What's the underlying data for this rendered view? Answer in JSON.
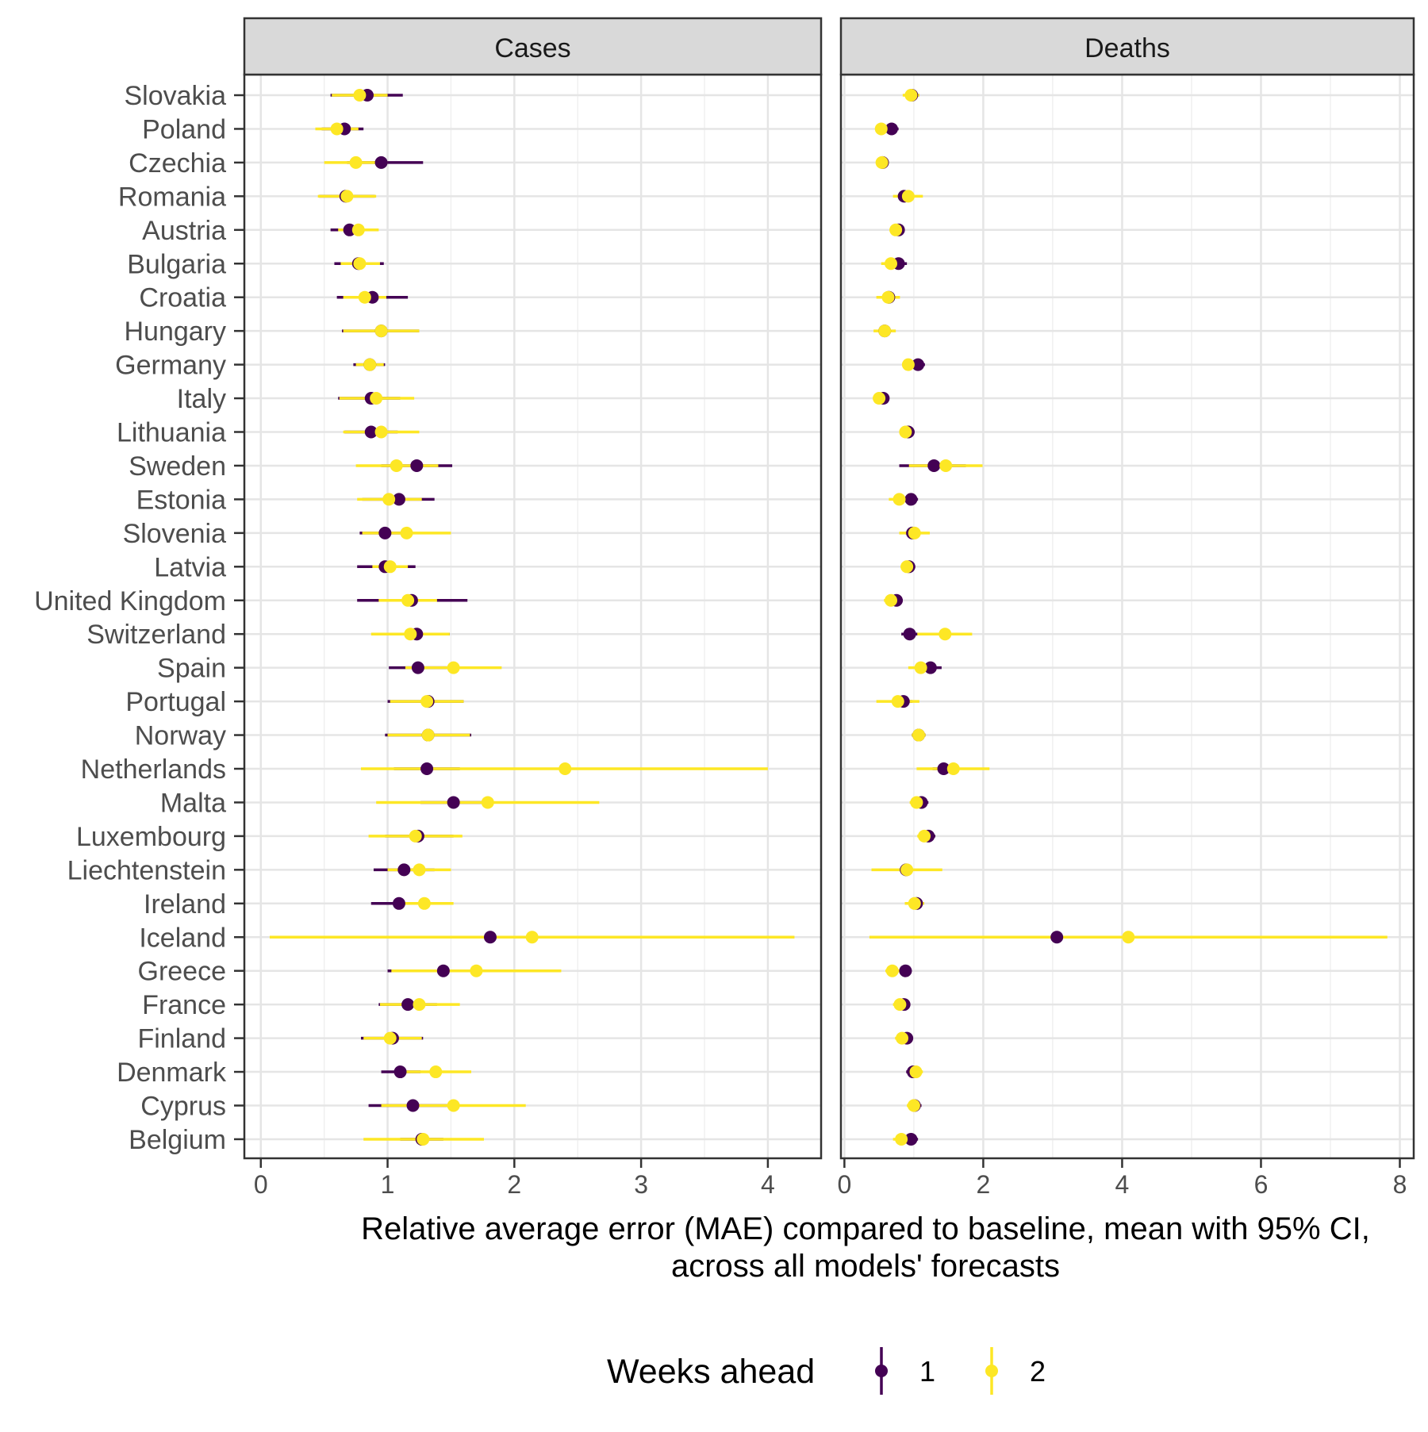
{
  "chart_data": {
    "type": "scatter",
    "description_type": "dot-and-whisker (mean with 95% CI), faceted",
    "countries": [
      "Slovakia",
      "Poland",
      "Czechia",
      "Romania",
      "Austria",
      "Bulgaria",
      "Croatia",
      "Hungary",
      "Germany",
      "Italy",
      "Lithuania",
      "Sweden",
      "Estonia",
      "Slovenia",
      "Latvia",
      "United Kingdom",
      "Switzerland",
      "Spain",
      "Portugal",
      "Norway",
      "Netherlands",
      "Malta",
      "Luxembourg",
      "Liechtenstein",
      "Ireland",
      "Iceland",
      "Greece",
      "France",
      "Finland",
      "Denmark",
      "Cyprus",
      "Belgium"
    ],
    "xlabel": "Relative average error (MAE) compared to baseline, mean with 95% CI,\nacross all models' forecasts",
    "legend": {
      "title": "Weeks ahead",
      "position": "bottom",
      "items": [
        {
          "label": "1",
          "color": "#440154"
        },
        {
          "label": "2",
          "color": "#FDE725"
        }
      ]
    },
    "grid": true,
    "facets": [
      {
        "title": "Cases",
        "xlim": [
          -0.13,
          4.42
        ],
        "xticks": [
          0,
          1,
          2,
          3,
          4
        ],
        "series": [
          {
            "name": "1",
            "color": "#440154",
            "points": [
              [
                0.84,
                0.55,
                1.12
              ],
              [
                0.66,
                0.48,
                0.81
              ],
              [
                0.95,
                0.68,
                1.28
              ],
              [
                0.67,
                0.46,
                0.9
              ],
              [
                0.7,
                0.55,
                0.85
              ],
              [
                0.77,
                0.58,
                0.97
              ],
              [
                0.88,
                0.6,
                1.16
              ],
              [
                0.95,
                0.64,
                1.25
              ],
              [
                0.86,
                0.73,
                0.98
              ],
              [
                0.87,
                0.61,
                1.1
              ],
              [
                0.87,
                0.66,
                1.08
              ],
              [
                1.23,
                0.95,
                1.51
              ],
              [
                1.09,
                0.8,
                1.37
              ],
              [
                0.98,
                0.78,
                1.2
              ],
              [
                0.98,
                0.76,
                1.22
              ],
              [
                1.19,
                0.76,
                1.63
              ],
              [
                1.23,
                0.98,
                1.49
              ],
              [
                1.24,
                1.01,
                1.47
              ],
              [
                1.32,
                1.0,
                1.6
              ],
              [
                1.32,
                0.98,
                1.66
              ],
              [
                1.31,
                1.05,
                1.57
              ],
              [
                1.52,
                1.26,
                1.78
              ],
              [
                1.24,
                0.98,
                1.52
              ],
              [
                1.13,
                0.89,
                1.37
              ],
              [
                1.09,
                0.87,
                1.32
              ],
              [
                1.81,
                1.42,
                2.2
              ],
              [
                1.44,
                1.0,
                1.88
              ],
              [
                1.16,
                0.93,
                1.39
              ],
              [
                1.04,
                0.79,
                1.28
              ],
              [
                1.1,
                0.95,
                1.26
              ],
              [
                1.2,
                0.85,
                1.55
              ],
              [
                1.27,
                1.1,
                1.44
              ]
            ]
          },
          {
            "name": "2",
            "color": "#FDE725",
            "points": [
              [
                0.78,
                0.56,
                1.0
              ],
              [
                0.6,
                0.43,
                0.77
              ],
              [
                0.75,
                0.5,
                1.0
              ],
              [
                0.68,
                0.45,
                0.91
              ],
              [
                0.77,
                0.61,
                0.93
              ],
              [
                0.78,
                0.63,
                0.94
              ],
              [
                0.82,
                0.65,
                0.99
              ],
              [
                0.95,
                0.65,
                1.25
              ],
              [
                0.86,
                0.75,
                0.97
              ],
              [
                0.91,
                0.62,
                1.21
              ],
              [
                0.95,
                0.65,
                1.25
              ],
              [
                1.07,
                0.75,
                1.4
              ],
              [
                1.01,
                0.76,
                1.27
              ],
              [
                1.15,
                0.8,
                1.5
              ],
              [
                1.02,
                0.88,
                1.16
              ],
              [
                1.16,
                0.93,
                1.39
              ],
              [
                1.18,
                0.87,
                1.49
              ],
              [
                1.52,
                1.14,
                1.9
              ],
              [
                1.31,
                1.02,
                1.6
              ],
              [
                1.32,
                1.0,
                1.65
              ],
              [
                2.4,
                0.79,
                4.0
              ],
              [
                1.79,
                0.91,
                2.67
              ],
              [
                1.22,
                0.85,
                1.59
              ],
              [
                1.25,
                1.0,
                1.5
              ],
              [
                1.29,
                1.06,
                1.52
              ],
              [
                2.14,
                0.07,
                4.21
              ],
              [
                1.7,
                1.03,
                2.37
              ],
              [
                1.25,
                0.94,
                1.57
              ],
              [
                1.02,
                0.81,
                1.27
              ],
              [
                1.38,
                1.1,
                1.66
              ],
              [
                1.52,
                0.95,
                2.09
              ],
              [
                1.28,
                0.81,
                1.76
              ]
            ]
          }
        ]
      },
      {
        "title": "Deaths",
        "xlim": [
          -0.05,
          8.2
        ],
        "xticks": [
          0,
          2,
          4,
          6,
          8
        ],
        "series": [
          {
            "name": "1",
            "color": "#440154",
            "points": [
              [
                0.97,
                0.87,
                1.07
              ],
              [
                0.68,
                0.58,
                0.78
              ],
              [
                0.55,
                0.48,
                0.62
              ],
              [
                0.86,
                0.77,
                0.95
              ],
              [
                0.78,
                0.7,
                0.86
              ],
              [
                0.78,
                0.66,
                0.9
              ],
              [
                0.64,
                0.56,
                0.72
              ],
              [
                0.58,
                0.5,
                0.66
              ],
              [
                1.06,
                0.96,
                1.16
              ],
              [
                0.56,
                0.48,
                0.64
              ],
              [
                0.92,
                0.83,
                1.01
              ],
              [
                1.29,
                0.79,
                1.75
              ],
              [
                0.96,
                0.86,
                1.06
              ],
              [
                0.98,
                0.88,
                1.08
              ],
              [
                0.93,
                0.84,
                1.02
              ],
              [
                0.75,
                0.66,
                0.84
              ],
              [
                0.94,
                0.82,
                1.06
              ],
              [
                1.24,
                1.09,
                1.4
              ],
              [
                0.85,
                0.72,
                0.98
              ],
              [
                1.07,
                0.97,
                1.17
              ],
              [
                1.43,
                1.27,
                1.59
              ],
              [
                1.11,
                1.01,
                1.21
              ],
              [
                1.21,
                1.11,
                1.31
              ],
              [
                0.89,
                0.79,
                0.99
              ],
              [
                1.04,
                0.93,
                1.15
              ],
              [
                3.06,
                2.96,
                3.16
              ],
              [
                0.88,
                0.79,
                0.97
              ],
              [
                0.86,
                0.77,
                0.95
              ],
              [
                0.9,
                0.81,
                0.99
              ],
              [
                0.99,
                0.89,
                1.09
              ],
              [
                1.01,
                0.91,
                1.11
              ],
              [
                0.96,
                0.86,
                1.06
              ]
            ]
          },
          {
            "name": "2",
            "color": "#FDE725",
            "points": [
              [
                0.96,
                0.84,
                1.08
              ],
              [
                0.53,
                0.45,
                0.62
              ],
              [
                0.54,
                0.46,
                0.62
              ],
              [
                0.92,
                0.7,
                1.13
              ],
              [
                0.74,
                0.65,
                0.83
              ],
              [
                0.67,
                0.53,
                0.81
              ],
              [
                0.63,
                0.46,
                0.8
              ],
              [
                0.58,
                0.42,
                0.74
              ],
              [
                0.92,
                0.83,
                1.01
              ],
              [
                0.5,
                0.41,
                0.59
              ],
              [
                0.88,
                0.79,
                0.97
              ],
              [
                1.46,
                0.93,
                1.99
              ],
              [
                0.79,
                0.64,
                0.94
              ],
              [
                1.01,
                0.79,
                1.23
              ],
              [
                0.9,
                0.81,
                0.99
              ],
              [
                0.67,
                0.57,
                0.77
              ],
              [
                1.45,
                1.05,
                1.84
              ],
              [
                1.1,
                0.92,
                1.28
              ],
              [
                0.77,
                0.46,
                1.08
              ],
              [
                1.07,
                0.97,
                1.17
              ],
              [
                1.57,
                1.04,
                2.09
              ],
              [
                1.04,
                0.94,
                1.14
              ],
              [
                1.15,
                1.05,
                1.25
              ],
              [
                0.9,
                0.39,
                1.41
              ],
              [
                1.01,
                0.87,
                1.15
              ],
              [
                4.09,
                0.36,
                7.82
              ],
              [
                0.69,
                0.59,
                0.79
              ],
              [
                0.8,
                0.7,
                0.9
              ],
              [
                0.83,
                0.73,
                0.93
              ],
              [
                1.03,
                0.93,
                1.13
              ],
              [
                1.0,
                0.9,
                1.1
              ],
              [
                0.82,
                0.7,
                0.94
              ]
            ]
          }
        ]
      }
    ]
  }
}
